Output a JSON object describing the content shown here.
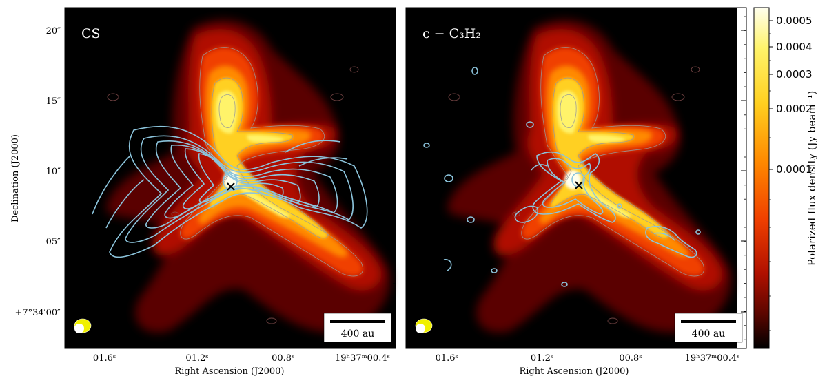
{
  "panels": [
    {
      "title": "CS",
      "scalebar_label": "400 au",
      "x_ticks": [
        "01.6ˢ",
        "01.2ˢ",
        "00.8ˢ",
        "19ʰ37ᵐ00.4ˢ"
      ],
      "y_ticks": [
        "20″",
        "15″",
        "10″",
        "05″",
        "+7°34′00″"
      ]
    },
    {
      "title": "c − C₃H₂",
      "scalebar_label": "400 au",
      "x_ticks": [
        "01.6ˢ",
        "01.2ˢ",
        "00.8ˢ",
        "19ʰ37ᵐ00.4ˢ"
      ]
    }
  ],
  "xlabel": "Right Ascension (J2000)",
  "ylabel": "Declination (J2000)",
  "colorbar": {
    "label": "Polarized flux density (Jy beam⁻¹)",
    "ticks": [
      "0.0005",
      "0.0004",
      "0.0003",
      "0.0002",
      "0.0001"
    ],
    "colors": [
      "#ffffee",
      "#fff36a",
      "#ffd020",
      "#ff8a00",
      "#f04000",
      "#b01000",
      "#5a0600",
      "#000000"
    ]
  }
}
